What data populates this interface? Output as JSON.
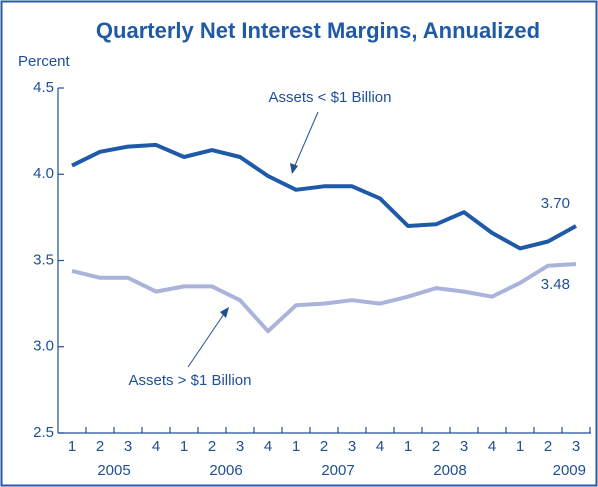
{
  "chart_data": {
    "type": "line",
    "title": "Quarterly Net Interest Margins, Annualized",
    "y_label": "Percent",
    "categories": [
      "1",
      "2",
      "3",
      "4",
      "1",
      "2",
      "3",
      "4",
      "1",
      "2",
      "3",
      "4",
      "1",
      "2",
      "3",
      "4",
      "1",
      "2",
      "3"
    ],
    "year_labels": [
      "2005",
      "2006",
      "2007",
      "2008",
      "2009"
    ],
    "series": [
      {
        "name": "Assets < $1 Billion",
        "color": "#1e5aa8",
        "values": [
          4.05,
          4.13,
          4.16,
          4.17,
          4.1,
          4.14,
          4.1,
          3.99,
          3.91,
          3.93,
          3.93,
          3.86,
          3.7,
          3.71,
          3.78,
          3.66,
          3.57,
          3.61,
          3.7
        ],
        "value_labels": [
          null,
          null,
          null,
          null,
          null,
          null,
          null,
          null,
          null,
          null,
          null,
          null,
          null,
          null,
          null,
          null,
          null,
          null,
          "3.70"
        ]
      },
      {
        "name": "Assets > $1 Billion",
        "color": "#aab3da",
        "values": [
          3.44,
          3.4,
          3.4,
          3.32,
          3.35,
          3.35,
          3.27,
          3.09,
          3.24,
          3.25,
          3.27,
          3.25,
          3.29,
          3.34,
          3.32,
          3.29,
          3.37,
          3.47,
          3.48
        ],
        "value_labels": [
          null,
          null,
          null,
          null,
          null,
          null,
          null,
          null,
          null,
          null,
          null,
          null,
          null,
          null,
          null,
          null,
          null,
          null,
          "3.48"
        ]
      }
    ],
    "ylim": [
      2.5,
      4.5
    ],
    "yticks": [
      4.5,
      {
        "value": 4,
        "label": "4.0"
      },
      3.5,
      {
        "value": 3,
        "label": "3.0"
      },
      2.5
    ]
  }
}
